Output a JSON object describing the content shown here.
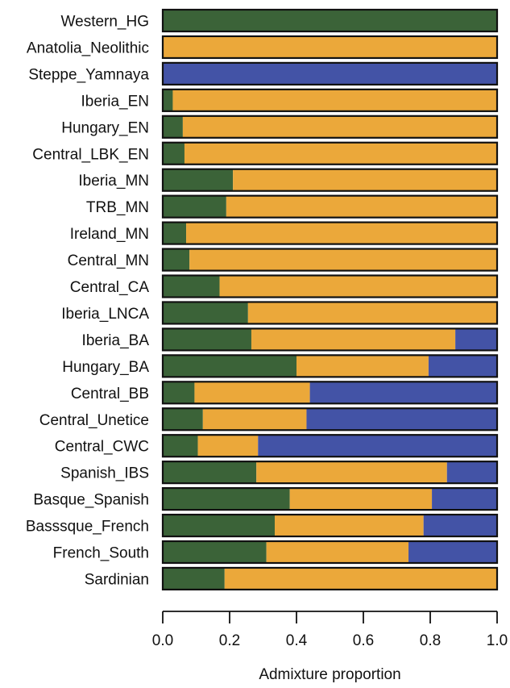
{
  "colors": {
    "Western_HG": "#3b6338",
    "Anatolia_Neolithic": "#eba83a",
    "Steppe_Yamnaya": "#4353a6",
    "stroke": "#111111"
  },
  "chart_data": {
    "type": "bar",
    "orientation": "horizontal",
    "stacked": true,
    "xlabel": "Admixture proportion",
    "xlim": [
      0,
      1
    ],
    "xticks": [
      "0.0",
      "0.2",
      "0.4",
      "0.6",
      "0.8",
      "1.0"
    ],
    "categories": [
      "Western_HG",
      "Anatolia_Neolithic",
      "Steppe_Yamnaya",
      "Iberia_EN",
      "Hungary_EN",
      "Central_LBK_EN",
      "Iberia_MN",
      "TRB_MN",
      "Ireland_MN",
      "Central_MN",
      "Central_CA",
      "Iberia_LNCA",
      "Iberia_BA",
      "Hungary_BA",
      "Central_BB",
      "Central_Unetice",
      "Central_CWC",
      "Spanish_IBS",
      "Basque_Spanish",
      "Basssque_French",
      "French_South",
      "Sardinian"
    ],
    "series": [
      {
        "key": "Western_HG",
        "values": [
          1.0,
          0.0,
          0.0,
          0.03,
          0.06,
          0.065,
          0.21,
          0.19,
          0.07,
          0.08,
          0.17,
          0.255,
          0.265,
          0.4,
          0.095,
          0.12,
          0.105,
          0.28,
          0.38,
          0.335,
          0.31,
          0.185
        ]
      },
      {
        "key": "Anatolia_Neolithic",
        "values": [
          0.0,
          1.0,
          0.0,
          0.97,
          0.94,
          0.935,
          0.79,
          0.81,
          0.93,
          0.92,
          0.83,
          0.745,
          0.61,
          0.395,
          0.345,
          0.31,
          0.18,
          0.57,
          0.425,
          0.445,
          0.425,
          0.815
        ]
      },
      {
        "key": "Steppe_Yamnaya",
        "values": [
          0.0,
          0.0,
          1.0,
          0.0,
          0.0,
          0.0,
          0.0,
          0.0,
          0.0,
          0.0,
          0.0,
          0.0,
          0.125,
          0.205,
          0.56,
          0.57,
          0.715,
          0.15,
          0.195,
          0.22,
          0.265,
          0.0
        ]
      }
    ]
  }
}
